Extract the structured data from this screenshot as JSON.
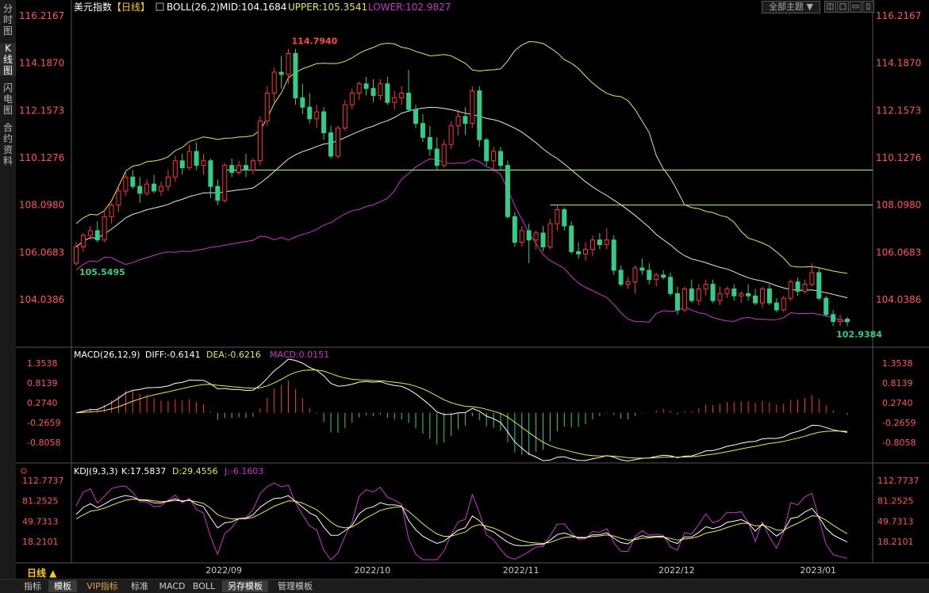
{
  "sidebar": {
    "tabs": [
      "分时图",
      "K线图",
      "闪电图",
      "合约资料"
    ],
    "active": 1
  },
  "header": {
    "title": "美元指数",
    "period_tag": "【日线】",
    "boll_name": "BOLL(26,2)",
    "boll_mid": "MID:104.1684",
    "boll_upper": "UPPER:105.3541",
    "boll_lower": "LOWER:102.9827",
    "theme_button": "全部主题",
    "win_buttons": [
      "◫",
      "□",
      "▭",
      "▯"
    ]
  },
  "macd_header": {
    "name": "MACD(26,12,9)",
    "diff": "DIFF:-0.6141",
    "dea": "DEA:-0.6216",
    "macd": "MACD:0.0151"
  },
  "kdj_header": {
    "name": "KDJ(9,3,3)",
    "k": "K:17.5837",
    "d": "D:29.4556",
    "j": "J:-6.1603"
  },
  "period_label": "日线 ▲",
  "bottom_tabs": [
    "指标",
    "模板",
    "VIP指标",
    "标准",
    "MACD",
    "BOLL",
    "另存模板",
    "管理模板"
  ],
  "colors": {
    "up": "#ff3333",
    "down": "#33cc88",
    "mid": "#e8e8e8",
    "upper": "#e8e84a",
    "lower": "#cc33cc",
    "hline": "#aaff66"
  },
  "chart_data": {
    "type": "candlestick",
    "x_ticks": [
      "2022/09",
      "2022/10",
      "2022/11",
      "2022/12",
      "2023/01"
    ],
    "price_axis": {
      "ticks": [
        "116.2167",
        "114.1870",
        "112.1573",
        "110.1276",
        "108.0980",
        "106.0683",
        "104.0386"
      ],
      "range": [
        102.3,
        116.2167
      ]
    },
    "annotations": {
      "high": "114.7940",
      "low_left": "105.5495",
      "low_right": "102.9384"
    },
    "horizontal_lines": [
      109.6,
      108.1
    ],
    "ohlc": [
      [
        105.6,
        106.5,
        105.5,
        106.3
      ],
      [
        106.3,
        106.9,
        106.1,
        106.8
      ],
      [
        106.8,
        107.2,
        106.6,
        107.0
      ],
      [
        107.0,
        107.4,
        106.5,
        106.6
      ],
      [
        106.6,
        107.9,
        106.5,
        107.6
      ],
      [
        107.6,
        108.2,
        107.3,
        108.1
      ],
      [
        108.1,
        108.9,
        107.8,
        108.7
      ],
      [
        108.7,
        109.5,
        108.5,
        109.3
      ],
      [
        109.3,
        109.6,
        108.8,
        108.9
      ],
      [
        108.9,
        109.3,
        108.2,
        108.6
      ],
      [
        108.6,
        109.2,
        108.5,
        109.0
      ],
      [
        109.0,
        109.4,
        108.6,
        108.7
      ],
      [
        108.7,
        109.1,
        108.5,
        108.9
      ],
      [
        108.9,
        109.6,
        108.7,
        109.3
      ],
      [
        109.3,
        110.2,
        109.1,
        110.0
      ],
      [
        110.0,
        110.3,
        109.4,
        109.7
      ],
      [
        109.7,
        110.7,
        109.6,
        110.4
      ],
      [
        110.4,
        110.8,
        109.6,
        109.8
      ],
      [
        109.8,
        110.3,
        109.4,
        110.0
      ],
      [
        110.0,
        110.1,
        108.4,
        108.9
      ],
      [
        108.9,
        109.2,
        108.1,
        108.3
      ],
      [
        108.3,
        109.9,
        108.2,
        109.8
      ],
      [
        109.8,
        110.1,
        109.3,
        109.5
      ],
      [
        109.5,
        110.0,
        109.4,
        109.8
      ],
      [
        109.8,
        110.3,
        109.3,
        109.6
      ],
      [
        109.6,
        110.1,
        109.4,
        110.0
      ],
      [
        110.0,
        111.9,
        109.8,
        111.7
      ],
      [
        111.7,
        113.2,
        111.5,
        112.9
      ],
      [
        112.9,
        114.0,
        112.5,
        113.8
      ],
      [
        113.8,
        114.5,
        113.1,
        113.7
      ],
      [
        113.7,
        114.8,
        113.3,
        114.6
      ],
      [
        114.6,
        114.8,
        112.4,
        112.7
      ],
      [
        112.7,
        113.3,
        112.0,
        112.3
      ],
      [
        112.3,
        112.9,
        111.6,
        111.8
      ],
      [
        111.8,
        112.4,
        111.4,
        112.1
      ],
      [
        112.1,
        112.3,
        110.9,
        111.2
      ],
      [
        111.2,
        111.5,
        110.1,
        110.2
      ],
      [
        110.2,
        111.5,
        110.1,
        111.4
      ],
      [
        111.4,
        112.6,
        111.3,
        112.4
      ],
      [
        112.4,
        113.1,
        112.2,
        112.9
      ],
      [
        112.9,
        113.4,
        112.6,
        113.3
      ],
      [
        113.3,
        113.6,
        112.8,
        113.1
      ],
      [
        113.1,
        113.5,
        112.5,
        112.8
      ],
      [
        112.8,
        113.5,
        112.6,
        113.3
      ],
      [
        113.3,
        113.6,
        112.4,
        112.5
      ],
      [
        112.5,
        113.0,
        112.2,
        112.7
      ],
      [
        112.7,
        113.2,
        112.4,
        112.9
      ],
      [
        112.9,
        113.9,
        112.1,
        112.2
      ],
      [
        112.2,
        112.4,
        111.4,
        111.6
      ],
      [
        111.6,
        112.0,
        110.8,
        111.0
      ],
      [
        111.0,
        111.5,
        110.2,
        110.5
      ],
      [
        110.5,
        111.0,
        109.6,
        109.8
      ],
      [
        109.8,
        110.9,
        109.7,
        110.7
      ],
      [
        110.7,
        111.7,
        110.5,
        111.5
      ],
      [
        111.5,
        112.2,
        111.1,
        111.9
      ],
      [
        111.9,
        112.3,
        111.1,
        111.6
      ],
      [
        111.6,
        113.2,
        111.4,
        113.0
      ],
      [
        113.0,
        113.2,
        110.6,
        110.9
      ],
      [
        110.9,
        111.0,
        109.8,
        110.0
      ],
      [
        110.0,
        110.6,
        109.5,
        110.4
      ],
      [
        110.4,
        110.6,
        109.6,
        109.8
      ],
      [
        109.8,
        110.0,
        107.5,
        107.6
      ],
      [
        107.6,
        107.8,
        106.3,
        106.5
      ],
      [
        106.5,
        107.2,
        106.3,
        107.0
      ],
      [
        107.0,
        107.3,
        105.6,
        106.6
      ],
      [
        106.6,
        107.0,
        106.2,
        106.9
      ],
      [
        106.9,
        107.2,
        106.1,
        106.3
      ],
      [
        106.3,
        107.5,
        106.2,
        107.3
      ],
      [
        107.3,
        108.1,
        107.0,
        107.9
      ],
      [
        107.9,
        108.0,
        107.0,
        107.2
      ],
      [
        107.2,
        107.4,
        106.0,
        106.1
      ],
      [
        106.1,
        106.5,
        105.8,
        106.0
      ],
      [
        106.0,
        106.5,
        105.7,
        106.2
      ],
      [
        106.2,
        106.8,
        105.9,
        106.6
      ],
      [
        106.6,
        106.9,
        106.2,
        106.4
      ],
      [
        106.4,
        107.1,
        106.2,
        106.6
      ],
      [
        106.6,
        106.8,
        105.1,
        105.3
      ],
      [
        105.3,
        105.5,
        104.6,
        104.7
      ],
      [
        104.7,
        105.0,
        104.5,
        104.8
      ],
      [
        104.8,
        105.5,
        104.3,
        105.4
      ],
      [
        105.4,
        105.8,
        105.1,
        105.3
      ],
      [
        105.3,
        105.6,
        104.7,
        104.9
      ],
      [
        104.9,
        105.2,
        104.6,
        105.1
      ],
      [
        105.1,
        105.3,
        104.9,
        105.0
      ],
      [
        105.0,
        105.2,
        104.2,
        104.3
      ],
      [
        104.3,
        104.6,
        103.4,
        103.6
      ],
      [
        103.6,
        104.6,
        103.5,
        104.5
      ],
      [
        104.5,
        104.9,
        103.9,
        104.0
      ],
      [
        104.0,
        104.7,
        103.8,
        104.5
      ],
      [
        104.5,
        104.9,
        104.2,
        104.7
      ],
      [
        104.7,
        104.9,
        103.9,
        104.0
      ],
      [
        104.0,
        104.6,
        103.8,
        104.3
      ],
      [
        104.3,
        104.6,
        104.1,
        104.5
      ],
      [
        104.5,
        104.7,
        104.0,
        104.2
      ],
      [
        104.2,
        104.4,
        103.9,
        104.3
      ],
      [
        104.3,
        104.7,
        104.0,
        104.2
      ],
      [
        104.2,
        104.5,
        103.8,
        103.9
      ],
      [
        103.9,
        104.6,
        103.7,
        104.5
      ],
      [
        104.5,
        104.7,
        103.8,
        103.9
      ],
      [
        103.9,
        104.1,
        103.5,
        103.6
      ],
      [
        103.6,
        104.2,
        103.5,
        104.1
      ],
      [
        104.1,
        104.9,
        104.0,
        104.8
      ],
      [
        104.8,
        105.0,
        104.2,
        104.4
      ],
      [
        104.4,
        104.9,
        104.3,
        104.7
      ],
      [
        104.7,
        105.6,
        104.6,
        105.2
      ],
      [
        105.2,
        105.4,
        104.0,
        104.1
      ],
      [
        104.1,
        104.2,
        103.3,
        103.4
      ],
      [
        103.4,
        103.6,
        102.9,
        103.1
      ],
      [
        103.1,
        103.4,
        102.9,
        103.2
      ],
      [
        103.2,
        103.3,
        102.9,
        103.1
      ]
    ]
  }
}
